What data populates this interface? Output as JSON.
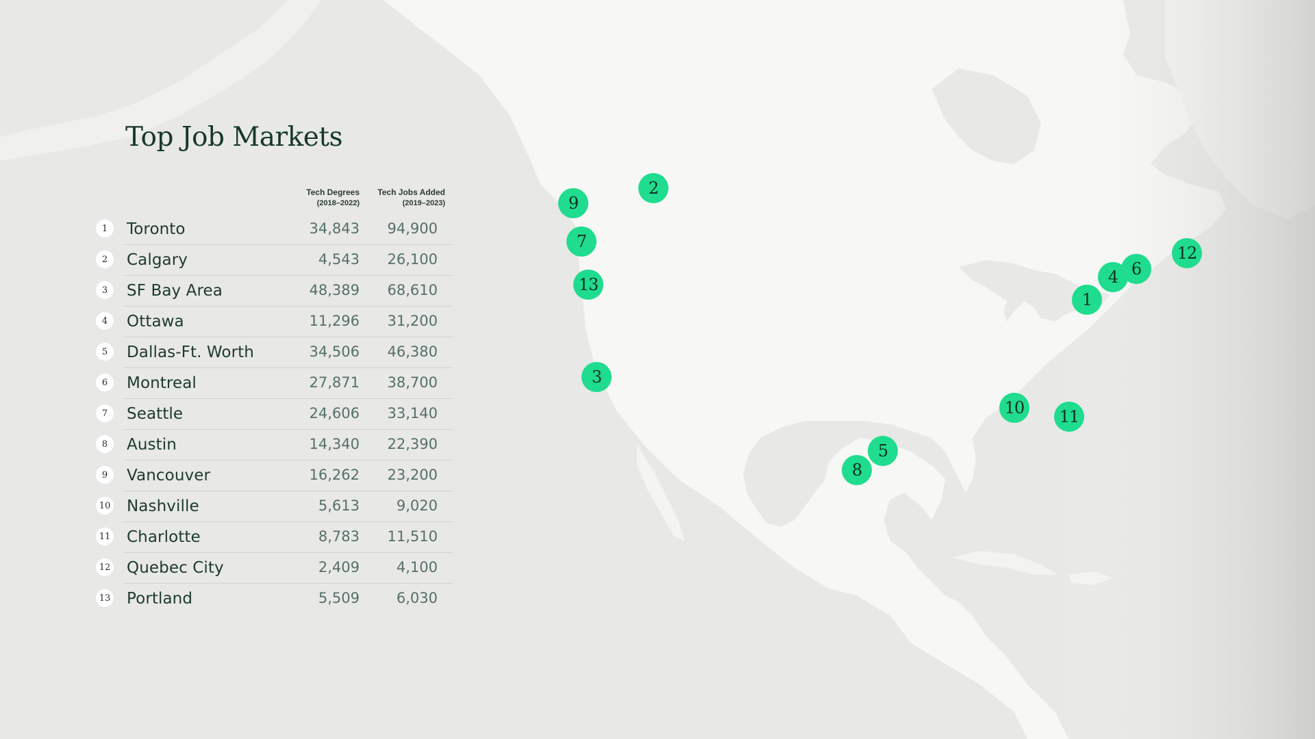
{
  "title": "Top Job Markets",
  "columns": {
    "degrees_label": "Tech Degrees",
    "degrees_period": "(2018–2022)",
    "jobs_label": "Tech Jobs Added",
    "jobs_period": "(2019–2023)"
  },
  "colors": {
    "marker": "#1fdc8e",
    "land": "#f7f7f5",
    "water": "#e6e6e4",
    "title": "#16382a"
  },
  "markets": [
    {
      "rank": "1",
      "city": "Toronto",
      "degrees": "34,843",
      "jobs": "94,900"
    },
    {
      "rank": "2",
      "city": "Calgary",
      "degrees": "4,543",
      "jobs": "26,100"
    },
    {
      "rank": "3",
      "city": "SF Bay Area",
      "degrees": "48,389",
      "jobs": "68,610"
    },
    {
      "rank": "4",
      "city": "Ottawa",
      "degrees": "11,296",
      "jobs": "31,200"
    },
    {
      "rank": "5",
      "city": "Dallas-Ft. Worth",
      "degrees": "34,506",
      "jobs": "46,380"
    },
    {
      "rank": "6",
      "city": "Montreal",
      "degrees": "27,871",
      "jobs": "38,700"
    },
    {
      "rank": "7",
      "city": "Seattle",
      "degrees": "24,606",
      "jobs": "33,140"
    },
    {
      "rank": "8",
      "city": "Austin",
      "degrees": "14,340",
      "jobs": "22,390"
    },
    {
      "rank": "9",
      "city": "Vancouver",
      "degrees": "16,262",
      "jobs": "23,200"
    },
    {
      "rank": "10",
      "city": "Nashville",
      "degrees": "5,613",
      "jobs": "9,020"
    },
    {
      "rank": "11",
      "city": "Charlotte",
      "degrees": "8,783",
      "jobs": "11,510"
    },
    {
      "rank": "12",
      "city": "Quebec City",
      "degrees": "2,409",
      "jobs": "4,100"
    },
    {
      "rank": "13",
      "city": "Portland",
      "degrees": "5,509",
      "jobs": "6,030"
    }
  ]
}
